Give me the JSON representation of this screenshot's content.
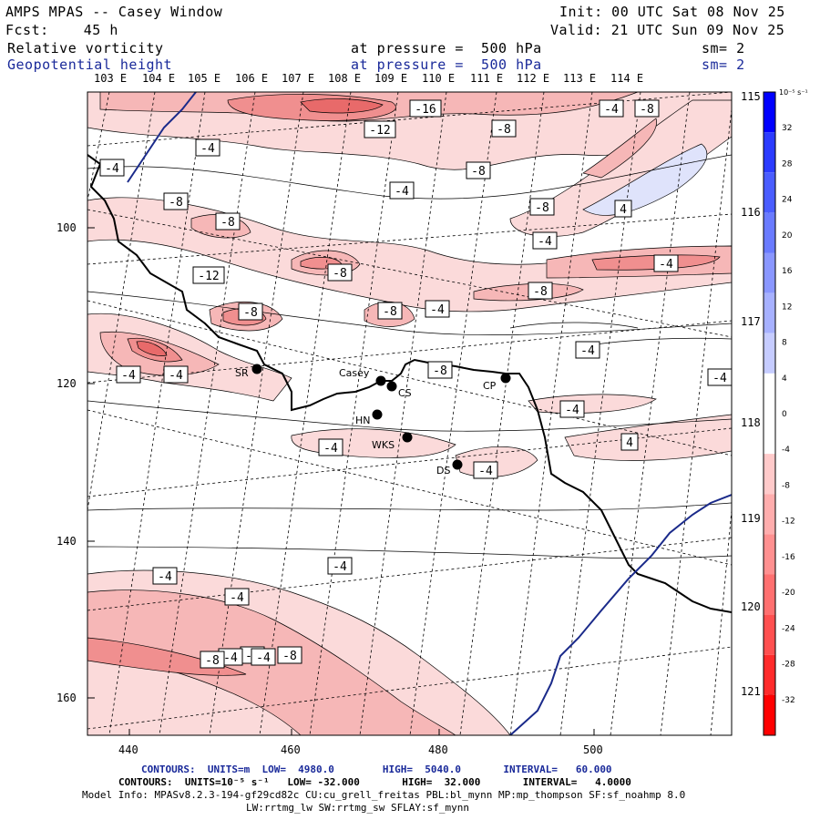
{
  "header": {
    "model": "AMPS MPAS -- Casey Window",
    "init": "Init: 00 UTC Sat 08 Nov 25",
    "fcst": "Fcst:    45 h",
    "valid": "Valid: 21 UTC Sun 09 Nov 25",
    "field1": {
      "name": "Relative vorticity",
      "pressure": "at pressure =  500 hPa",
      "sm": "sm= 2"
    },
    "field2": {
      "name": "Geopotential height",
      "pressure": "at pressure =  500 hPa",
      "sm": "sm= 2"
    }
  },
  "map": {
    "top_lon_labels": [
      "103 E",
      "104 E",
      "105 E",
      "106 E",
      "107 E",
      "108 E",
      "109 E",
      "110 E",
      "111 E",
      "112 E",
      "113 E",
      "114 E"
    ],
    "right_lon_labels": [
      "115 E",
      "116 E",
      "117 E",
      "118 E",
      "119 E",
      "120 E",
      "121 E"
    ],
    "y_ticks": [
      "100",
      "120",
      "140",
      "160"
    ],
    "x_ticks": [
      "440",
      "460",
      "480",
      "500"
    ],
    "stations": [
      {
        "id": "SR",
        "name": "SR"
      },
      {
        "id": "Casey",
        "name": "Casey"
      },
      {
        "id": "CS",
        "name": "CS"
      },
      {
        "id": "CP",
        "name": "CP"
      },
      {
        "id": "HN",
        "name": "HN"
      },
      {
        "id": "WKS",
        "name": "WKS"
      },
      {
        "id": "DS",
        "name": "DS"
      }
    ],
    "contour_labels": [
      "-16",
      "-12",
      "-8",
      "-4",
      "-8",
      "-4",
      "-8",
      "-4",
      "-4",
      "-8",
      "-8",
      "4",
      "-4",
      "-8",
      "-8",
      "-4",
      "-12",
      "-8",
      "-8",
      "-8",
      "-4",
      "-4",
      "-4",
      "-8",
      "-4",
      "-4",
      "-4",
      "4",
      "-4",
      "-4",
      "-4",
      "-4",
      "-4",
      "-4",
      "-8",
      "-4",
      "-8",
      "-4"
    ]
  },
  "colorbar": {
    "unit": "10⁻⁵ s⁻¹",
    "labels": [
      "32",
      "28",
      "24",
      "20",
      "16",
      "12",
      "8",
      "4",
      "0",
      "-4",
      "-8",
      "-12",
      "-16",
      "-20",
      "-24",
      "-28",
      "-32"
    ],
    "top_color": "#0000ff",
    "bottom_color": "#ff0000"
  },
  "footer": {
    "line1": "CONTOURS:  UNITS=m  LOW=  4980.0        HIGH=  5040.0       INTERVAL=   60.000",
    "line2": "CONTOURS:  UNITS=10⁻⁵ s⁻¹   LOW= -32.000       HIGH=  32.000       INTERVAL=   4.0000",
    "line3": "Model Info: MPASv8.2.3-194-gf29cd82c CU:cu_grell_freitas PBL:bl_mynn MP:mp_thompson SF:sf_noahmp 8.0",
    "line4": "LW:rrtmg_lw SW:rrtmg_sw SFLAY:sf_mynn"
  }
}
